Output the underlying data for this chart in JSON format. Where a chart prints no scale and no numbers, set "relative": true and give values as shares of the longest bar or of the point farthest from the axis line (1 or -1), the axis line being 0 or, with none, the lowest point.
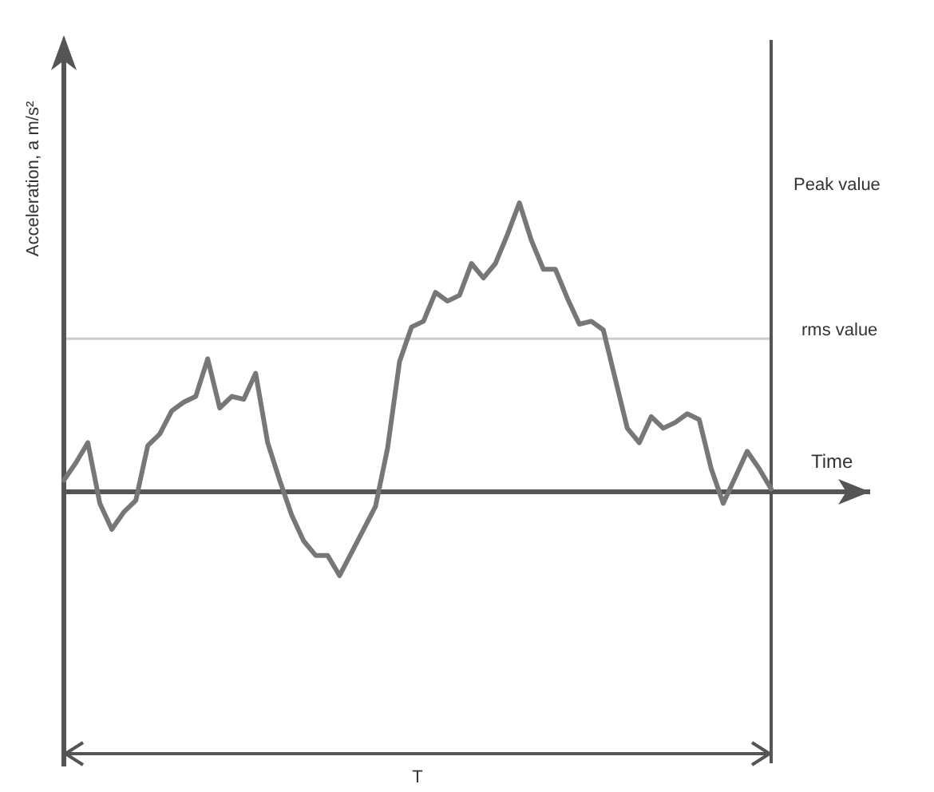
{
  "chart_data": {
    "type": "line",
    "relative": true,
    "xlabel": "Time",
    "ylabel": "Acceleration, a m/s²",
    "marker": "none",
    "line_style": "solid",
    "categories": [
      null,
      null,
      null,
      null,
      null,
      null,
      null,
      null,
      null,
      null,
      null,
      null,
      null,
      null,
      null,
      null,
      null,
      null,
      null,
      null,
      null,
      null,
      null,
      null,
      null,
      null,
      null,
      null,
      null,
      null,
      null,
      null,
      null,
      null,
      null,
      null,
      null,
      null,
      null,
      null,
      null,
      null,
      null,
      null,
      null,
      null,
      null,
      null,
      null,
      null,
      null,
      null,
      null,
      null,
      null,
      null,
      null,
      null,
      null,
      null
    ],
    "series": [
      {
        "color": "#777777",
        "values": [
          0.04,
          0.1,
          0.17,
          -0.04,
          -0.13,
          -0.07,
          -0.03,
          0.16,
          0.2,
          0.28,
          0.31,
          0.33,
          0.46,
          0.29,
          0.33,
          0.32,
          0.41,
          0.17,
          0.04,
          -0.08,
          -0.17,
          -0.22,
          -0.22,
          -0.29,
          -0.21,
          -0.13,
          -0.05,
          0.15,
          0.45,
          0.57,
          0.59,
          0.69,
          0.66,
          0.68,
          0.79,
          0.74,
          0.79,
          0.89,
          1,
          0.87,
          0.77,
          0.77,
          0.67,
          0.58,
          0.59,
          0.56,
          0.39,
          0.22,
          0.17,
          0.26,
          0.22,
          0.24,
          0.27,
          0.25,
          0.08,
          -0.04,
          0.05,
          0.14,
          0.08,
          0.01
        ]
      }
    ],
    "ref_lines": [
      {
        "axis": "y",
        "value": 0.53,
        "label": "rms value",
        "color": "#cccccc"
      }
    ],
    "annotations": [
      "Peak value",
      "T"
    ]
  }
}
